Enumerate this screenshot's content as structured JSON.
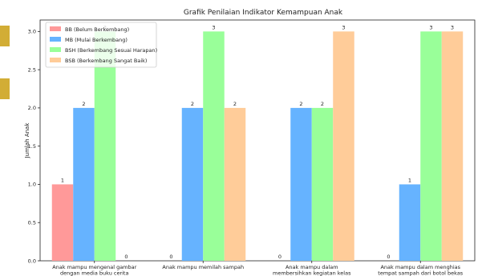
{
  "chart_data": {
    "type": "bar",
    "title": "Grafik Penilaian Indikator Kemampuan Anak",
    "ylabel": "Jumlah Anak",
    "xlabel": "",
    "ylim": [
      0,
      3.15
    ],
    "yticks": [
      "0.0",
      "0.5",
      "1.0",
      "1.5",
      "2.0",
      "2.5",
      "3.0"
    ],
    "grid": false,
    "legend_position": "top-left",
    "categories": [
      [
        "Anak mampu mengenal gambar",
        "dengan media buku cerita"
      ],
      [
        "Anak mampu memilah sampah"
      ],
      [
        "Anak mampu dalam",
        "membersihkan kegiatan kelas"
      ],
      [
        "Anak mampu dalam menghias",
        "tempat sampah dari botol bekas"
      ]
    ],
    "series": [
      {
        "name": "BB (Belum Berkembang)",
        "color": "#ff9999",
        "values": [
          1,
          0,
          0,
          0
        ]
      },
      {
        "name": "MB (Mulai Berkembang)",
        "color": "#66b3ff",
        "values": [
          2,
          2,
          2,
          1
        ]
      },
      {
        "name": "BSH (Berkembang Sesuai Harapan)",
        "color": "#99ff99",
        "values": [
          3,
          3,
          2,
          3
        ]
      },
      {
        "name": "BSB (Berkembang Sangat Baik)",
        "color": "#ffcc99",
        "values": [
          0,
          2,
          3,
          3
        ]
      }
    ]
  }
}
